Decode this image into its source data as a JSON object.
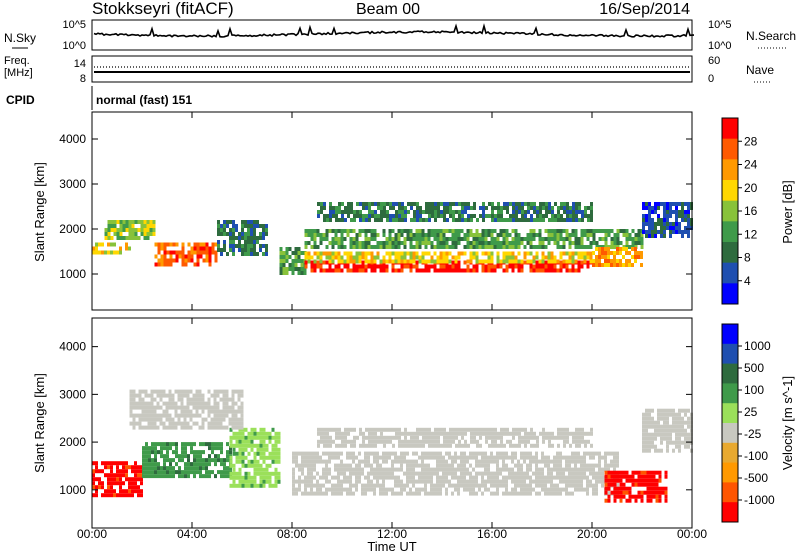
{
  "header": {
    "station": "Stokkseyri (fitACF)",
    "beam": "Beam 00",
    "date": "16/Sep/2014"
  },
  "sky_panel": {
    "left_label": "N.Sky",
    "right_label": "N.Search",
    "left_ticks": [
      "10^5",
      "10^0"
    ],
    "right_ticks": [
      "10^5",
      "10^0"
    ]
  },
  "freq_panel": {
    "left_label_1": "Freq.",
    "left_label_2": "[MHz]",
    "right_label": "Nave",
    "left_ticks": [
      "14",
      "8"
    ],
    "right_ticks": [
      "60",
      "0"
    ]
  },
  "cpid": {
    "label": "CPID",
    "value": "normal (fast) 151"
  },
  "colors": {
    "power": [
      "#0000ff",
      "#1f4fb0",
      "#2e6b3e",
      "#3f9a4a",
      "#88c23a",
      "#ffd700",
      "#ff9900",
      "#ff5a00",
      "#ff0000"
    ],
    "velocity": [
      "#ff0000",
      "#ff5500",
      "#ff9900",
      "#e8a930",
      "#c8c8c0",
      "#9be05a",
      "#3f9a4a",
      "#2e6b3e",
      "#1f4fb0",
      "#0000ff"
    ]
  },
  "chart_data": [
    {
      "type": "heatmap",
      "name": "power",
      "ylabel": "Slant Range [km]",
      "xlabel": "Time UT",
      "y_ticks": [
        "4000",
        "3000",
        "2000",
        "1000"
      ],
      "ylim": [
        200,
        4600
      ],
      "x_ticks": [
        "00:00",
        "04:00",
        "08:00",
        "12:00",
        "16:00",
        "20:00",
        "00:00"
      ],
      "xlim_hours": [
        0,
        24
      ],
      "colorbar_label": "Power [dB]",
      "colorbar_ticks": [
        "28",
        "24",
        "20",
        "16",
        "12",
        "8",
        "4"
      ],
      "bands": [
        {
          "t0": 0.0,
          "t1": 1.5,
          "r0": 1500,
          "r1": 1700,
          "power": 18
        },
        {
          "t0": 0.5,
          "t1": 2.5,
          "r0": 1800,
          "r1": 2200,
          "power": 14
        },
        {
          "t0": 2.5,
          "t1": 5.0,
          "r0": 1200,
          "r1": 1700,
          "power": 26
        },
        {
          "t0": 5.0,
          "t1": 7.0,
          "r0": 1400,
          "r1": 2200,
          "power": 6
        },
        {
          "t0": 7.5,
          "t1": 8.5,
          "r0": 1000,
          "r1": 1600,
          "power": 10
        },
        {
          "t0": 8.5,
          "t1": 20.0,
          "r0": 1100,
          "r1": 1300,
          "power": 28
        },
        {
          "t0": 8.5,
          "t1": 20.0,
          "r0": 1300,
          "r1": 1500,
          "power": 16
        },
        {
          "t0": 8.5,
          "t1": 22.0,
          "r0": 1600,
          "r1": 2000,
          "power": 10
        },
        {
          "t0": 9.0,
          "t1": 20.0,
          "r0": 2200,
          "r1": 2600,
          "power": 6
        },
        {
          "t0": 20.0,
          "t1": 22.0,
          "r0": 1200,
          "r1": 1600,
          "power": 22
        },
        {
          "t0": 22.0,
          "t1": 24.0,
          "r0": 1800,
          "r1": 2600,
          "power": 4
        }
      ]
    },
    {
      "type": "heatmap",
      "name": "velocity",
      "ylabel": "Slant Range [km]",
      "xlabel": "Time UT",
      "y_ticks": [
        "4000",
        "3000",
        "2000",
        "1000"
      ],
      "ylim": [
        200,
        4600
      ],
      "x_ticks": [
        "00:00",
        "04:00",
        "08:00",
        "12:00",
        "16:00",
        "20:00",
        "00:00"
      ],
      "xlim_hours": [
        0,
        24
      ],
      "colorbar_label": "Velocity [m s^-1]",
      "colorbar_ticks": [
        "1000",
        "500",
        "100",
        "25",
        "-25",
        "-100",
        "-500",
        "-1000"
      ],
      "bands": [
        {
          "t0": 0.0,
          "t1": 2.0,
          "r0": 900,
          "r1": 1600,
          "velocity": -700
        },
        {
          "t0": 2.0,
          "t1": 5.5,
          "r0": 1300,
          "r1": 2000,
          "velocity": 200
        },
        {
          "t0": 5.5,
          "t1": 7.5,
          "r0": 1100,
          "r1": 2300,
          "velocity": 60
        },
        {
          "t0": 1.5,
          "t1": 6.0,
          "r0": 2300,
          "r1": 3100,
          "velocity": 0
        },
        {
          "t0": 8.0,
          "t1": 21.0,
          "r0": 900,
          "r1": 1800,
          "velocity": 0
        },
        {
          "t0": 9.0,
          "t1": 20.0,
          "r0": 1900,
          "r1": 2300,
          "velocity": 0
        },
        {
          "t0": 20.5,
          "t1": 23.0,
          "r0": 800,
          "r1": 1400,
          "velocity": -800
        },
        {
          "t0": 22.0,
          "t1": 24.0,
          "r0": 1800,
          "r1": 2700,
          "velocity": 0
        }
      ]
    }
  ]
}
